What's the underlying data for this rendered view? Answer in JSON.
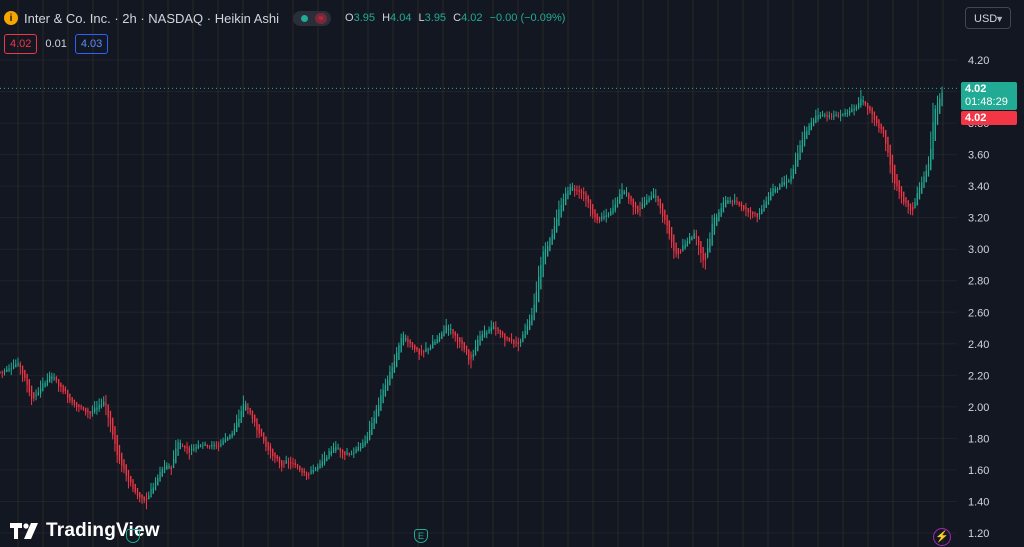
{
  "header": {
    "symbol_icon": "i",
    "title": "Inter & Co. Inc. · 2h · NASDAQ · Heikin Ashi",
    "ohlc": {
      "o_label": "O",
      "o": "3.95",
      "h_label": "H",
      "h": "4.04",
      "l_label": "L",
      "l": "3.95",
      "c_label": "C",
      "c": "4.02",
      "change": "−0.00 (−0.09%)"
    }
  },
  "trade": {
    "sell": "4.02",
    "spread": "0.01",
    "buy": "4.03"
  },
  "currency": {
    "label": "USD"
  },
  "price_tag": {
    "price": "4.02",
    "countdown": "01:48:29",
    "prev_close": "4.02"
  },
  "branding": {
    "logo_text": "TradingView"
  },
  "markers": {
    "earnings_label": "E",
    "lightning_icon": "⚡"
  },
  "colors": {
    "background": "#131722",
    "up": "#22ab94",
    "down": "#f23645",
    "grid": "#1e222d",
    "session_line": "#3a3421",
    "text": "#d1d4dc"
  },
  "chart_data": {
    "type": "candlestick",
    "style": "Heikin Ashi",
    "ylim": [
      1.2,
      4.3
    ],
    "y_ticks": [
      "4.20",
      "4.00",
      "3.80",
      "3.60",
      "3.40",
      "3.20",
      "3.00",
      "2.80",
      "2.60",
      "2.40",
      "2.20",
      "2.00",
      "1.80",
      "1.60",
      "1.40",
      "1.20"
    ],
    "current_price": 4.02,
    "close_path": [
      [
        0,
        2.22
      ],
      [
        8,
        2.28
      ],
      [
        14,
        2.04
      ],
      [
        22,
        2.21
      ],
      [
        32,
        2.02
      ],
      [
        40,
        1.96
      ],
      [
        46,
        2.04
      ],
      [
        52,
        1.67
      ],
      [
        60,
        1.44
      ],
      [
        64,
        1.4
      ],
      [
        72,
        1.62
      ],
      [
        76,
        1.62
      ],
      [
        78,
        1.78
      ],
      [
        84,
        1.72
      ],
      [
        88,
        1.77
      ],
      [
        96,
        1.75
      ],
      [
        104,
        1.86
      ],
      [
        108,
        2.04
      ],
      [
        112,
        1.91
      ],
      [
        118,
        1.74
      ],
      [
        124,
        1.63
      ],
      [
        128,
        1.65
      ],
      [
        136,
        1.57
      ],
      [
        142,
        1.64
      ],
      [
        148,
        1.75
      ],
      [
        152,
        1.71
      ],
      [
        156,
        1.7
      ],
      [
        162,
        1.79
      ],
      [
        168,
        2.04
      ],
      [
        174,
        2.27
      ],
      [
        178,
        2.46
      ],
      [
        186,
        2.33
      ],
      [
        194,
        2.43
      ],
      [
        198,
        2.52
      ],
      [
        204,
        2.4
      ],
      [
        208,
        2.29
      ],
      [
        212,
        2.44
      ],
      [
        218,
        2.51
      ],
      [
        224,
        2.43
      ],
      [
        230,
        2.4
      ],
      [
        236,
        2.6
      ],
      [
        240,
        2.96
      ],
      [
        244,
        3.08
      ],
      [
        248,
        3.26
      ],
      [
        252,
        3.4
      ],
      [
        258,
        3.36
      ],
      [
        264,
        3.18
      ],
      [
        270,
        3.22
      ],
      [
        276,
        3.39
      ],
      [
        282,
        3.24
      ],
      [
        290,
        3.36
      ],
      [
        296,
        3.12
      ],
      [
        300,
        2.94
      ],
      [
        304,
        3.06
      ],
      [
        308,
        3.1
      ],
      [
        312,
        2.91
      ],
      [
        316,
        3.18
      ],
      [
        322,
        3.32
      ],
      [
        330,
        3.26
      ],
      [
        336,
        3.21
      ],
      [
        342,
        3.38
      ],
      [
        350,
        3.44
      ],
      [
        356,
        3.72
      ],
      [
        362,
        3.86
      ],
      [
        370,
        3.84
      ],
      [
        378,
        3.88
      ],
      [
        382,
        3.96
      ],
      [
        386,
        3.86
      ],
      [
        392,
        3.71
      ],
      [
        396,
        3.44
      ],
      [
        400,
        3.31
      ],
      [
        404,
        3.23
      ],
      [
        408,
        3.41
      ],
      [
        412,
        3.56
      ],
      [
        414,
        3.88
      ],
      [
        418,
        4.02
      ]
    ],
    "earnings_marker_bar": 180
  }
}
